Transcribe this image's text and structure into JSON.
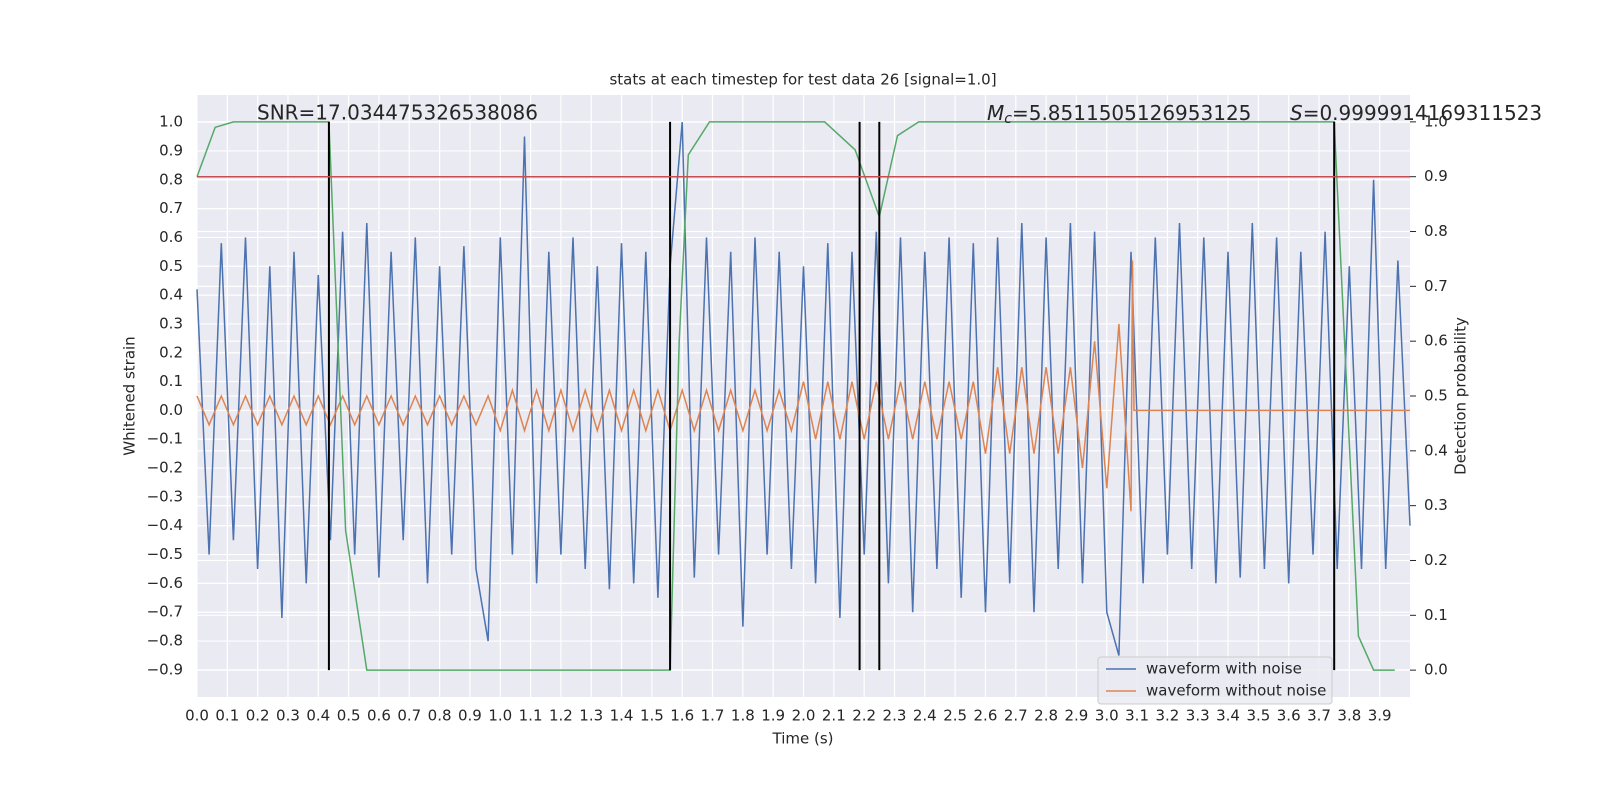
{
  "chart_data": {
    "type": "line",
    "title": "stats at each timestep for test data 26 [signal=1.0]",
    "x_label": "Time (s)",
    "y_label": "Whitened strain",
    "y2_label": "Detection probability",
    "annotations": {
      "snr": "SNR=17.034475326538086",
      "mc_symbol": "M",
      "mc_subscript": "c",
      "mc_text": "=5.8511505126953125",
      "s_symbol": "S",
      "s_text": "=0.9999914169311523"
    },
    "xlim": [
      0,
      4.0
    ],
    "ylim": [
      -0.994,
      1.094
    ],
    "y2lim": [
      -0.049,
      1.049
    ],
    "grid": true,
    "legend": "lower right",
    "xticks": [
      {
        "value": 0,
        "label": "0.0"
      },
      {
        "value": 0.1,
        "label": "0.1"
      },
      {
        "value": 0.2,
        "label": "0.2"
      },
      {
        "value": 0.3,
        "label": "0.3"
      },
      {
        "value": 0.4,
        "label": "0.4"
      },
      {
        "value": 0.5,
        "label": "0.5"
      },
      {
        "value": 0.6,
        "label": "0.6"
      },
      {
        "value": 0.7,
        "label": "0.7"
      },
      {
        "value": 0.8,
        "label": "0.8"
      },
      {
        "value": 0.9,
        "label": "0.9"
      },
      {
        "value": 1.0,
        "label": "1.0"
      },
      {
        "value": 1.1,
        "label": "1.1"
      },
      {
        "value": 1.2,
        "label": "1.2"
      },
      {
        "value": 1.3,
        "label": "1.3"
      },
      {
        "value": 1.4,
        "label": "1.4"
      },
      {
        "value": 1.5,
        "label": "1.5"
      },
      {
        "value": 1.6,
        "label": "1.6"
      },
      {
        "value": 1.7,
        "label": "1.7"
      },
      {
        "value": 1.8,
        "label": "1.8"
      },
      {
        "value": 1.9,
        "label": "1.9"
      },
      {
        "value": 2.0,
        "label": "2.0"
      },
      {
        "value": 2.1,
        "label": "2.1"
      },
      {
        "value": 2.2,
        "label": "2.2"
      },
      {
        "value": 2.3,
        "label": "2.3"
      },
      {
        "value": 2.4,
        "label": "2.4"
      },
      {
        "value": 2.5,
        "label": "2.5"
      },
      {
        "value": 2.6,
        "label": "2.6"
      },
      {
        "value": 2.7,
        "label": "2.7"
      },
      {
        "value": 2.8,
        "label": "2.8"
      },
      {
        "value": 2.9,
        "label": "2.9"
      },
      {
        "value": 3.0,
        "label": "3.0"
      },
      {
        "value": 3.1,
        "label": "3.1"
      },
      {
        "value": 3.2,
        "label": "3.2"
      },
      {
        "value": 3.3,
        "label": "3.3"
      },
      {
        "value": 3.4,
        "label": "3.4"
      },
      {
        "value": 3.5,
        "label": "3.5"
      },
      {
        "value": 3.6,
        "label": "3.6"
      },
      {
        "value": 3.7,
        "label": "3.7"
      },
      {
        "value": 3.8,
        "label": "3.8"
      },
      {
        "value": 3.9,
        "label": "3.9"
      }
    ],
    "yticks": [
      {
        "value": -0.9,
        "label": "−0.9"
      },
      {
        "value": -0.8,
        "label": "−0.8"
      },
      {
        "value": -0.7,
        "label": "−0.7"
      },
      {
        "value": -0.6,
        "label": "−0.6"
      },
      {
        "value": -0.5,
        "label": "−0.5"
      },
      {
        "value": -0.4,
        "label": "−0.4"
      },
      {
        "value": -0.3,
        "label": "−0.3"
      },
      {
        "value": -0.2,
        "label": "−0.2"
      },
      {
        "value": -0.1,
        "label": "−0.1"
      },
      {
        "value": 0,
        "label": "0.0"
      },
      {
        "value": 0.1,
        "label": "0.1"
      },
      {
        "value": 0.2,
        "label": "0.2"
      },
      {
        "value": 0.3,
        "label": "0.3"
      },
      {
        "value": 0.4,
        "label": "0.4"
      },
      {
        "value": 0.5,
        "label": "0.5"
      },
      {
        "value": 0.6,
        "label": "0.6"
      },
      {
        "value": 0.7,
        "label": "0.7"
      },
      {
        "value": 0.8,
        "label": "0.8"
      },
      {
        "value": 0.9,
        "label": "0.9"
      },
      {
        "value": 1.0,
        "label": "1.0"
      }
    ],
    "y2ticks": [
      {
        "value": 0,
        "label": "0.0"
      },
      {
        "value": 0.1,
        "label": "0.1"
      },
      {
        "value": 0.2,
        "label": "0.2"
      },
      {
        "value": 0.3,
        "label": "0.3"
      },
      {
        "value": 0.4,
        "label": "0.4"
      },
      {
        "value": 0.5,
        "label": "0.5"
      },
      {
        "value": 0.6,
        "label": "0.6"
      },
      {
        "value": 0.7,
        "label": "0.7"
      },
      {
        "value": 0.8,
        "label": "0.8"
      },
      {
        "value": 0.9,
        "label": "0.9"
      },
      {
        "value": 1.0,
        "label": "1.0"
      }
    ],
    "series": [
      {
        "name": "waveform with noise",
        "color": "#4c72b0",
        "x": [
          0,
          0.04,
          0.08,
          0.12,
          0.16,
          0.2,
          0.24,
          0.28,
          0.32,
          0.36,
          0.4,
          0.44,
          0.48,
          0.52,
          0.56,
          0.6,
          0.64,
          0.68,
          0.72,
          0.76,
          0.8,
          0.84,
          0.88,
          0.92,
          0.96,
          1.0,
          1.04,
          1.08,
          1.12,
          1.16,
          1.2,
          1.24,
          1.28,
          1.32,
          1.36,
          1.4,
          1.44,
          1.48,
          1.52,
          1.56,
          1.6,
          1.64,
          1.68,
          1.72,
          1.76,
          1.8,
          1.84,
          1.88,
          1.92,
          1.96,
          2.0,
          2.04,
          2.08,
          2.12,
          2.16,
          2.2,
          2.24,
          2.28,
          2.32,
          2.36,
          2.4,
          2.44,
          2.48,
          2.52,
          2.56,
          2.6,
          2.64,
          2.68,
          2.72,
          2.76,
          2.8,
          2.84,
          2.88,
          2.92,
          2.96,
          3.0,
          3.04,
          3.08,
          3.12,
          3.16,
          3.2,
          3.24,
          3.28,
          3.32,
          3.36,
          3.4,
          3.44,
          3.48,
          3.52,
          3.56,
          3.6,
          3.64,
          3.68,
          3.72,
          3.76,
          3.8,
          3.84,
          3.88,
          3.92,
          3.96,
          4.0
        ],
        "values": [
          0.42,
          -0.5,
          0.58,
          -0.45,
          0.6,
          -0.55,
          0.5,
          -0.72,
          0.55,
          -0.6,
          0.47,
          -0.45,
          0.62,
          -0.5,
          0.65,
          -0.58,
          0.55,
          -0.45,
          0.6,
          -0.6,
          0.5,
          -0.5,
          0.57,
          -0.55,
          -0.8,
          0.6,
          -0.5,
          0.95,
          -0.6,
          0.55,
          -0.5,
          0.6,
          -0.55,
          0.5,
          -0.62,
          0.58,
          -0.6,
          0.55,
          -0.65,
          0.5,
          1.0,
          -0.58,
          0.6,
          -0.5,
          0.55,
          -0.75,
          0.6,
          -0.5,
          0.55,
          -0.55,
          0.5,
          -0.6,
          0.58,
          -0.72,
          0.55,
          -0.5,
          0.62,
          -0.6,
          0.6,
          -0.7,
          0.55,
          -0.55,
          0.6,
          -0.65,
          0.58,
          -0.7,
          0.6,
          -0.6,
          0.65,
          -0.7,
          0.6,
          -0.55,
          0.65,
          -0.6,
          0.62,
          -0.7,
          -0.85,
          0.55,
          -0.6,
          0.6,
          -0.5,
          0.65,
          -0.55,
          0.6,
          -0.6,
          0.55,
          -0.58,
          0.65,
          -0.55,
          0.6,
          -0.6,
          0.55,
          -0.5,
          0.62,
          -0.55,
          0.5,
          -0.55,
          0.8,
          -0.55,
          0.52,
          -0.4
        ]
      },
      {
        "name": "waveform without noise",
        "color": "#dd8452",
        "x": [
          0,
          0.04,
          0.08,
          0.12,
          0.16,
          0.2,
          0.24,
          0.28,
          0.32,
          0.36,
          0.4,
          0.44,
          0.48,
          0.52,
          0.56,
          0.6,
          0.64,
          0.68,
          0.72,
          0.76,
          0.8,
          0.84,
          0.88,
          0.92,
          0.96,
          1.0,
          1.04,
          1.08,
          1.12,
          1.16,
          1.2,
          1.24,
          1.28,
          1.32,
          1.36,
          1.4,
          1.44,
          1.48,
          1.52,
          1.56,
          1.6,
          1.64,
          1.68,
          1.72,
          1.76,
          1.8,
          1.84,
          1.88,
          1.92,
          1.96,
          2.0,
          2.04,
          2.08,
          2.12,
          2.16,
          2.2,
          2.24,
          2.28,
          2.32,
          2.36,
          2.4,
          2.44,
          2.48,
          2.52,
          2.56,
          2.6,
          2.64,
          2.68,
          2.72,
          2.76,
          2.8,
          2.84,
          2.88,
          2.92,
          2.96,
          3.0,
          3.04,
          3.08,
          3.085,
          3.09,
          4.0
        ],
        "values": [
          0.05,
          -0.05,
          0.05,
          -0.05,
          0.05,
          -0.05,
          0.05,
          -0.05,
          0.05,
          -0.05,
          0.05,
          -0.05,
          0.05,
          -0.05,
          0.05,
          -0.05,
          0.05,
          -0.05,
          0.05,
          -0.05,
          0.05,
          -0.05,
          0.05,
          -0.05,
          0.05,
          -0.07,
          0.07,
          -0.07,
          0.07,
          -0.07,
          0.07,
          -0.07,
          0.07,
          -0.07,
          0.07,
          -0.07,
          0.07,
          -0.07,
          0.07,
          -0.07,
          0.07,
          -0.07,
          0.07,
          -0.07,
          0.07,
          -0.07,
          0.07,
          -0.07,
          0.07,
          -0.07,
          0.1,
          -0.1,
          0.1,
          -0.1,
          0.1,
          -0.1,
          0.1,
          -0.1,
          0.1,
          -0.1,
          0.1,
          -0.1,
          0.1,
          -0.1,
          0.1,
          -0.15,
          0.15,
          -0.15,
          0.15,
          -0.15,
          0.15,
          -0.15,
          0.15,
          -0.2,
          0.24,
          -0.27,
          0.3,
          -0.35,
          0.52,
          0,
          0
        ]
      },
      {
        "name": "detection probability",
        "color": "#55a868",
        "axis": "y2",
        "x": [
          0,
          0.06,
          0.12,
          0.435,
          0.49,
          0.56,
          1.56,
          1.59,
          1.62,
          1.69,
          2.07,
          2.17,
          2.25,
          2.31,
          2.38,
          3.75,
          3.83,
          3.88,
          3.95
        ],
        "values": [
          0.9,
          0.99,
          1.0,
          1.0,
          0.255,
          0.0,
          0.0,
          0.6,
          0.94,
          1.0,
          1.0,
          0.949,
          0.827,
          0.975,
          1.0,
          1.0,
          0.062,
          0.0,
          0.0
        ]
      }
    ],
    "threshold": 0.9,
    "threshold_color": "#c44e52",
    "detections": [
      0.435,
      1.56,
      2.185,
      2.25,
      3.75
    ],
    "detection_span": [
      0,
      1
    ]
  }
}
